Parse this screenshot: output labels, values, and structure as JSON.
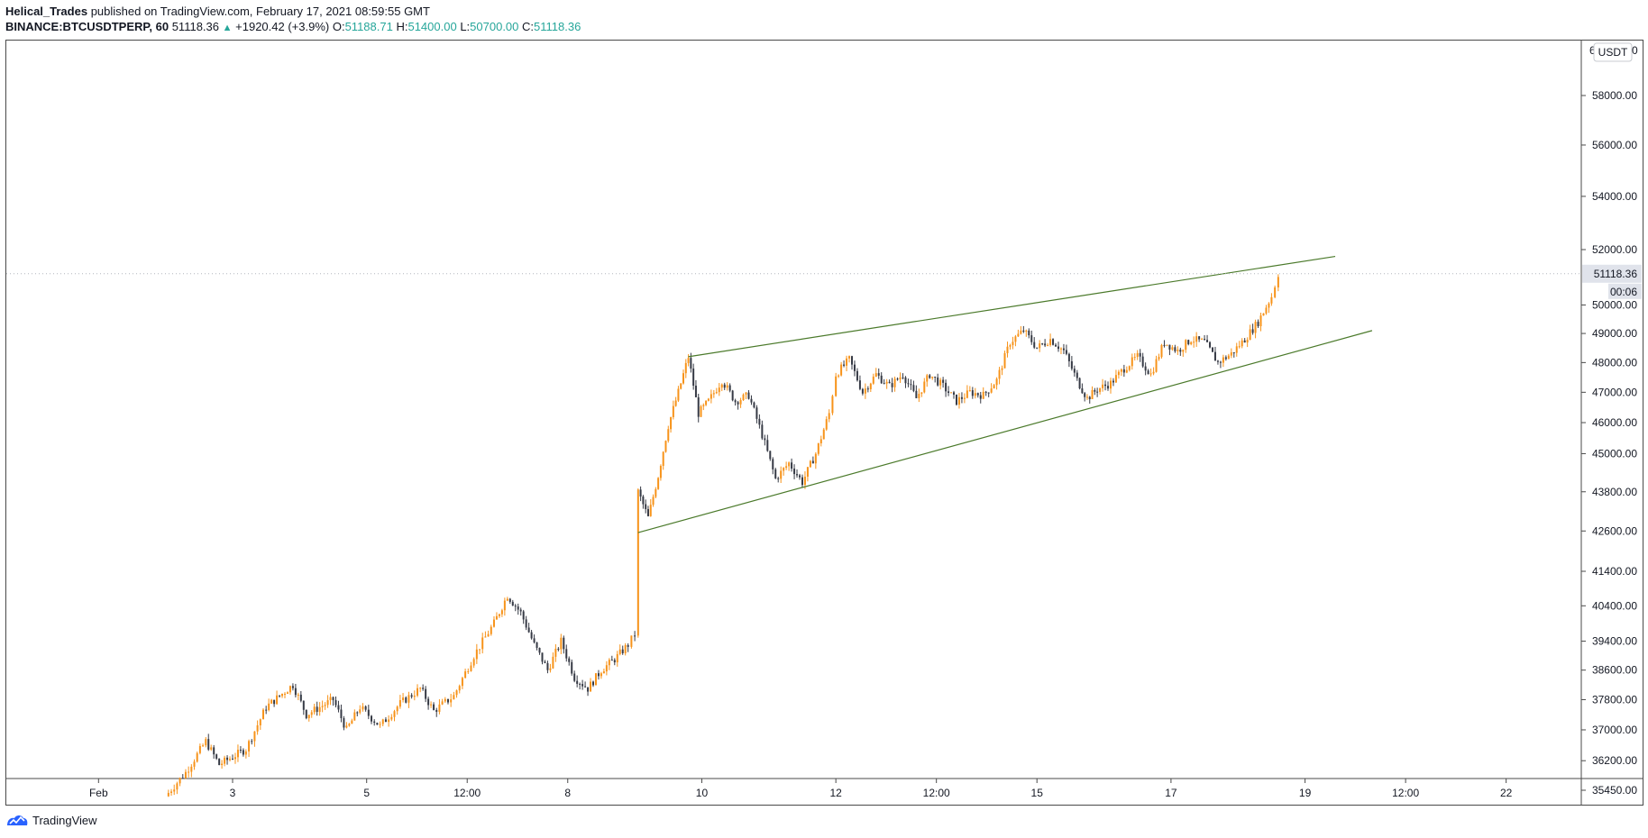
{
  "header": {
    "publisher": "Helical_Trades",
    "published_text": "published on TradingView.com, February 17, 2021 08:59:55 GMT",
    "symbol": "BINANCE:BTCUSDTPERP, 60",
    "last": "51118.36",
    "change": "+1920.42 (+3.9%)",
    "o_label": "O:",
    "o_value": "51188.71",
    "h_label": "H:",
    "h_value": "51400.00",
    "l_label": "L:",
    "l_value": "50700.00",
    "c_label": "C:",
    "c_value": "51118.36"
  },
  "footer": {
    "brand": "TradingView"
  },
  "colors": {
    "up": "#f7931a",
    "down": "#363a45",
    "trendline": "#4b7a2b",
    "accent": "#26a69a"
  },
  "chart_data": {
    "type": "candlestick",
    "symbol": "BINANCE:BTCUSDTPERP",
    "interval": "60",
    "currency": "USDT",
    "y_scale": "log",
    "y_ticks": [
      "35450.00",
      "36200.00",
      "37000.00",
      "37800.00",
      "38600.00",
      "39400.00",
      "40400.00",
      "41400.00",
      "42600.00",
      "43800.00",
      "45000.00",
      "46000.00",
      "47000.00",
      "48000.00",
      "49000.00",
      "50000.00",
      "52000.00",
      "54000.00",
      "56000.00",
      "58000.00"
    ],
    "x_ticks": [
      {
        "label": "Feb",
        "day": 1.0
      },
      {
        "label": "3",
        "day": 3.0
      },
      {
        "label": "5",
        "day": 5.0
      },
      {
        "label": "12:00",
        "day": 6.5
      },
      {
        "label": "8",
        "day": 8.0
      },
      {
        "label": "10",
        "day": 10.0
      },
      {
        "label": "12",
        "day": 12.0
      },
      {
        "label": "12:00",
        "day": 13.5
      },
      {
        "label": "15",
        "day": 15.0
      },
      {
        "label": "17",
        "day": 17.0
      },
      {
        "label": "19",
        "day": 19.0
      },
      {
        "label": "12:00",
        "day": 20.5
      },
      {
        "label": "22",
        "day": 22.0
      }
    ],
    "last_price": "51118.36",
    "countdown": "00:06",
    "top_tick_partial": "6",
    "top_tick_partial_end": "0",
    "price_path": [
      [
        2.0,
        35300
      ],
      [
        2.3,
        35900
      ],
      [
        2.6,
        36700
      ],
      [
        2.8,
        36100
      ],
      [
        3.2,
        36500
      ],
      [
        3.5,
        37600
      ],
      [
        3.9,
        38200
      ],
      [
        4.1,
        37400
      ],
      [
        4.5,
        37800
      ],
      [
        4.7,
        37000
      ],
      [
        4.9,
        37600
      ],
      [
        5.2,
        37100
      ],
      [
        5.5,
        37700
      ],
      [
        5.8,
        38100
      ],
      [
        6.0,
        37500
      ],
      [
        6.3,
        37900
      ],
      [
        6.6,
        39000
      ],
      [
        6.9,
        39900
      ],
      [
        7.1,
        40700
      ],
      [
        7.3,
        40200
      ],
      [
        7.5,
        39300
      ],
      [
        7.7,
        38600
      ],
      [
        7.9,
        39400
      ],
      [
        8.1,
        38400
      ],
      [
        8.3,
        38100
      ],
      [
        8.5,
        38600
      ],
      [
        8.7,
        38900
      ],
      [
        8.9,
        39300
      ],
      [
        9.0,
        39600
      ],
      [
        9.05,
        43800
      ],
      [
        9.2,
        43000
      ],
      [
        9.35,
        44300
      ],
      [
        9.5,
        45900
      ],
      [
        9.65,
        47000
      ],
      [
        9.8,
        48200
      ],
      [
        9.95,
        46300
      ],
      [
        10.1,
        46700
      ],
      [
        10.3,
        47400
      ],
      [
        10.5,
        46700
      ],
      [
        10.7,
        46900
      ],
      [
        10.9,
        45600
      ],
      [
        11.1,
        44200
      ],
      [
        11.3,
        44700
      ],
      [
        11.5,
        44100
      ],
      [
        11.7,
        45000
      ],
      [
        11.9,
        46300
      ],
      [
        12.0,
        47600
      ],
      [
        12.2,
        48100
      ],
      [
        12.4,
        47000
      ],
      [
        12.6,
        47600
      ],
      [
        12.8,
        47200
      ],
      [
        13.0,
        47600
      ],
      [
        13.2,
        46800
      ],
      [
        13.4,
        47600
      ],
      [
        13.6,
        47200
      ],
      [
        13.8,
        46700
      ],
      [
        14.0,
        47000
      ],
      [
        14.2,
        46900
      ],
      [
        14.4,
        47400
      ],
      [
        14.6,
        48700
      ],
      [
        14.8,
        49100
      ],
      [
        15.0,
        48500
      ],
      [
        15.2,
        48800
      ],
      [
        15.4,
        48400
      ],
      [
        15.6,
        47400
      ],
      [
        15.75,
        46800
      ],
      [
        15.9,
        47100
      ],
      [
        16.1,
        47300
      ],
      [
        16.3,
        47800
      ],
      [
        16.5,
        48200
      ],
      [
        16.7,
        47600
      ],
      [
        16.9,
        48700
      ],
      [
        17.1,
        48400
      ],
      [
        17.3,
        48800
      ],
      [
        17.5,
        48700
      ],
      [
        17.7,
        48000
      ],
      [
        17.9,
        48300
      ],
      [
        18.1,
        48800
      ],
      [
        18.3,
        49400
      ],
      [
        18.5,
        50300
      ],
      [
        18.6,
        51118.36
      ]
    ],
    "trendlines": [
      {
        "name": "upper",
        "from": [
          9.8,
          48200
        ],
        "to": [
          19.45,
          51750
        ]
      },
      {
        "name": "lower",
        "from": [
          9.05,
          42550
        ],
        "to": [
          20.0,
          49100
        ]
      }
    ]
  }
}
